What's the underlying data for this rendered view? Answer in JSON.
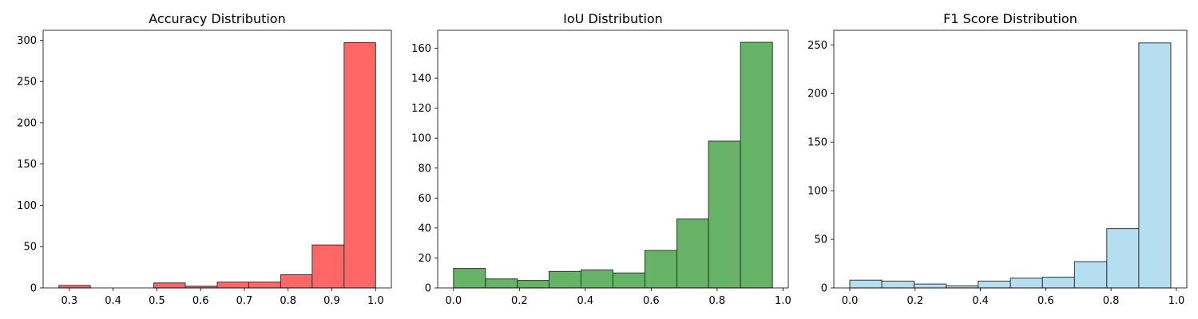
{
  "chart_data": [
    {
      "type": "bar",
      "title": "Accuracy Distribution",
      "xlabel": "",
      "ylabel": "",
      "color": "#ff6666",
      "edge_color": "#333333",
      "bins": [
        {
          "start": 0.276,
          "end": 0.348,
          "count": 3
        },
        {
          "start": 0.348,
          "end": 0.42,
          "count": 0
        },
        {
          "start": 0.42,
          "end": 0.493,
          "count": 0
        },
        {
          "start": 0.493,
          "end": 0.565,
          "count": 6
        },
        {
          "start": 0.565,
          "end": 0.638,
          "count": 2
        },
        {
          "start": 0.638,
          "end": 0.71,
          "count": 7
        },
        {
          "start": 0.71,
          "end": 0.783,
          "count": 7
        },
        {
          "start": 0.783,
          "end": 0.855,
          "count": 16
        },
        {
          "start": 0.855,
          "end": 0.928,
          "count": 52
        },
        {
          "start": 0.928,
          "end": 1.0,
          "count": 297
        }
      ],
      "xlim": [
        0.24,
        1.036
      ],
      "ylim": [
        0,
        312
      ],
      "xticks": [
        0.3,
        0.4,
        0.5,
        0.6,
        0.7,
        0.8,
        0.9,
        1.0
      ],
      "xtick_labels": [
        "0.3",
        "0.4",
        "0.5",
        "0.6",
        "0.7",
        "0.8",
        "0.9",
        "1.0"
      ],
      "yticks": [
        0,
        50,
        100,
        150,
        200,
        250,
        300
      ],
      "ytick_labels": [
        "0",
        "50",
        "100",
        "150",
        "200",
        "250",
        "300"
      ]
    },
    {
      "type": "bar",
      "title": "IoU Distribution",
      "xlabel": "",
      "ylabel": "",
      "color": "#66b266",
      "edge_color": "#333333",
      "bins": [
        {
          "start": 0.0,
          "end": 0.097,
          "count": 13
        },
        {
          "start": 0.097,
          "end": 0.194,
          "count": 6
        },
        {
          "start": 0.194,
          "end": 0.29,
          "count": 5
        },
        {
          "start": 0.29,
          "end": 0.387,
          "count": 11
        },
        {
          "start": 0.387,
          "end": 0.484,
          "count": 12
        },
        {
          "start": 0.484,
          "end": 0.581,
          "count": 10
        },
        {
          "start": 0.581,
          "end": 0.678,
          "count": 25
        },
        {
          "start": 0.678,
          "end": 0.774,
          "count": 46
        },
        {
          "start": 0.774,
          "end": 0.871,
          "count": 98
        },
        {
          "start": 0.871,
          "end": 0.968,
          "count": 164
        }
      ],
      "xlim": [
        -0.048,
        1.016
      ],
      "ylim": [
        0,
        172
      ],
      "xticks": [
        0.0,
        0.2,
        0.4,
        0.6,
        0.8,
        1.0
      ],
      "xtick_labels": [
        "0.0",
        "0.2",
        "0.4",
        "0.6",
        "0.8",
        "1.0"
      ],
      "yticks": [
        0,
        20,
        40,
        60,
        80,
        100,
        120,
        140,
        160
      ],
      "ytick_labels": [
        "0",
        "20",
        "40",
        "60",
        "80",
        "100",
        "120",
        "140",
        "160"
      ]
    },
    {
      "type": "bar",
      "title": "F1 Score Distribution",
      "xlabel": "",
      "ylabel": "",
      "color": "#b5dff0",
      "edge_color": "#333333",
      "bins": [
        {
          "start": 0.0,
          "end": 0.098,
          "count": 8
        },
        {
          "start": 0.098,
          "end": 0.197,
          "count": 7
        },
        {
          "start": 0.197,
          "end": 0.295,
          "count": 4
        },
        {
          "start": 0.295,
          "end": 0.393,
          "count": 2
        },
        {
          "start": 0.393,
          "end": 0.492,
          "count": 7
        },
        {
          "start": 0.492,
          "end": 0.59,
          "count": 10
        },
        {
          "start": 0.59,
          "end": 0.688,
          "count": 11
        },
        {
          "start": 0.688,
          "end": 0.787,
          "count": 27
        },
        {
          "start": 0.787,
          "end": 0.885,
          "count": 61
        },
        {
          "start": 0.885,
          "end": 0.983,
          "count": 252
        }
      ],
      "xlim": [
        -0.049,
        1.032
      ],
      "ylim": [
        0,
        265
      ],
      "xticks": [
        0.0,
        0.2,
        0.4,
        0.6,
        0.8,
        1.0
      ],
      "xtick_labels": [
        "0.0",
        "0.2",
        "0.4",
        "0.6",
        "0.8",
        "1.0"
      ],
      "yticks": [
        0,
        50,
        100,
        150,
        200,
        250
      ],
      "ytick_labels": [
        "0",
        "50",
        "100",
        "150",
        "200",
        "250"
      ]
    }
  ]
}
